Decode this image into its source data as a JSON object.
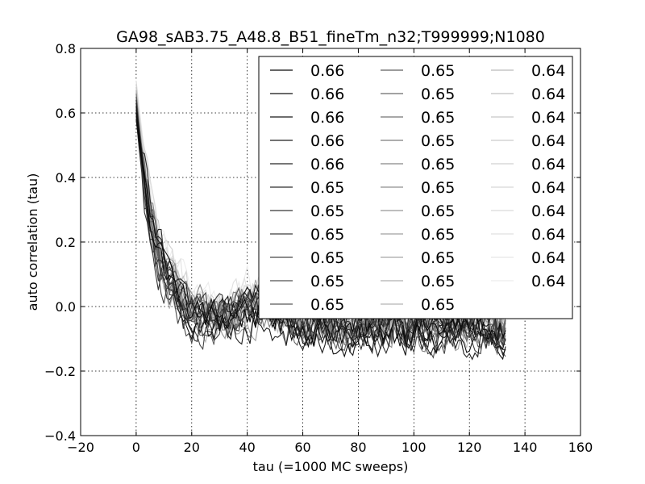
{
  "chart_data": {
    "type": "line",
    "title": "GA98_sAB3.75_A48.8_B51_fineTm_n32;T999999;N1080",
    "xlabel": "tau (=1000 MC sweeps)",
    "ylabel": "auto correlation (tau)",
    "xlim": [
      -20,
      160
    ],
    "ylim": [
      -0.4,
      0.8
    ],
    "xticks": [
      -20,
      0,
      20,
      40,
      60,
      80,
      100,
      120,
      140,
      160
    ],
    "yticks": [
      -0.4,
      -0.2,
      0.0,
      0.2,
      0.4,
      0.6,
      0.8
    ],
    "xtick_labels": [
      "−20",
      "0",
      "20",
      "40",
      "60",
      "80",
      "100",
      "120",
      "140",
      "160"
    ],
    "ytick_labels": [
      "−0.4",
      "−0.2",
      "0.0",
      "0.2",
      "0.4",
      "0.6",
      "0.8"
    ],
    "grid": true,
    "legend_position": "top-right",
    "legend_columns": 3,
    "x_max": 133,
    "series": [
      {
        "name": "0.66",
        "color": "#0a0a0a",
        "start": 0.6,
        "tail": -0.07
      },
      {
        "name": "0.66",
        "color": "#111111",
        "start": 0.62,
        "tail": -0.09
      },
      {
        "name": "0.66",
        "color": "#181818",
        "start": 0.58,
        "tail": -0.06
      },
      {
        "name": "0.66",
        "color": "#1f1f1f",
        "start": 0.63,
        "tail": -0.1
      },
      {
        "name": "0.66",
        "color": "#262626",
        "start": 0.61,
        "tail": -0.05
      },
      {
        "name": "0.65",
        "color": "#2e2e2e",
        "start": 0.64,
        "tail": -0.08
      },
      {
        "name": "0.65",
        "color": "#363636",
        "start": 0.59,
        "tail": -0.06
      },
      {
        "name": "0.65",
        "color": "#3e3e3e",
        "start": 0.62,
        "tail": -0.07
      },
      {
        "name": "0.65",
        "color": "#474747",
        "start": 0.6,
        "tail": -0.09
      },
      {
        "name": "0.65",
        "color": "#505050",
        "start": 0.65,
        "tail": -0.04
      },
      {
        "name": "0.65",
        "color": "#595959",
        "start": 0.61,
        "tail": -0.06
      },
      {
        "name": "0.65",
        "color": "#626262",
        "start": 0.63,
        "tail": -0.08
      },
      {
        "name": "0.65",
        "color": "#6b6b6b",
        "start": 0.58,
        "tail": -0.05
      },
      {
        "name": "0.65",
        "color": "#747474",
        "start": 0.66,
        "tail": -0.07
      },
      {
        "name": "0.65",
        "color": "#7d7d7d",
        "start": 0.62,
        "tail": -0.09
      },
      {
        "name": "0.65",
        "color": "#868686",
        "start": 0.6,
        "tail": -0.04
      },
      {
        "name": "0.65",
        "color": "#8f8f8f",
        "start": 0.64,
        "tail": -0.06
      },
      {
        "name": "0.65",
        "color": "#989898",
        "start": 0.61,
        "tail": -0.05
      },
      {
        "name": "0.65",
        "color": "#a0a0a0",
        "start": 0.63,
        "tail": -0.08
      },
      {
        "name": "0.65",
        "color": "#a8a8a8",
        "start": 0.67,
        "tail": -0.03
      },
      {
        "name": "0.65",
        "color": "#afafaf",
        "start": 0.62,
        "tail": -0.06
      },
      {
        "name": "0.65",
        "color": "#b5b5b5",
        "start": 0.65,
        "tail": -0.05
      },
      {
        "name": "0.64",
        "color": "#bbbbbb",
        "start": 0.66,
        "tail": -0.04
      },
      {
        "name": "0.64",
        "color": "#c1c1c1",
        "start": 0.63,
        "tail": -0.07
      },
      {
        "name": "0.64",
        "color": "#c7c7c7",
        "start": 0.68,
        "tail": -0.03
      },
      {
        "name": "0.64",
        "color": "#cccccc",
        "start": 0.64,
        "tail": -0.05
      },
      {
        "name": "0.64",
        "color": "#d1d1d1",
        "start": 0.69,
        "tail": -0.02
      },
      {
        "name": "0.64",
        "color": "#d6d6d6",
        "start": 0.66,
        "tail": -0.04
      },
      {
        "name": "0.64",
        "color": "#dbdbdb",
        "start": 0.7,
        "tail": -0.03
      },
      {
        "name": "0.64",
        "color": "#e0e0e0",
        "start": 0.67,
        "tail": -0.02
      },
      {
        "name": "0.64",
        "color": "#e6e6e6",
        "start": 0.68,
        "tail": -0.04
      },
      {
        "name": "0.64",
        "color": "#ececec",
        "start": 0.7,
        "tail": -0.01
      }
    ]
  }
}
